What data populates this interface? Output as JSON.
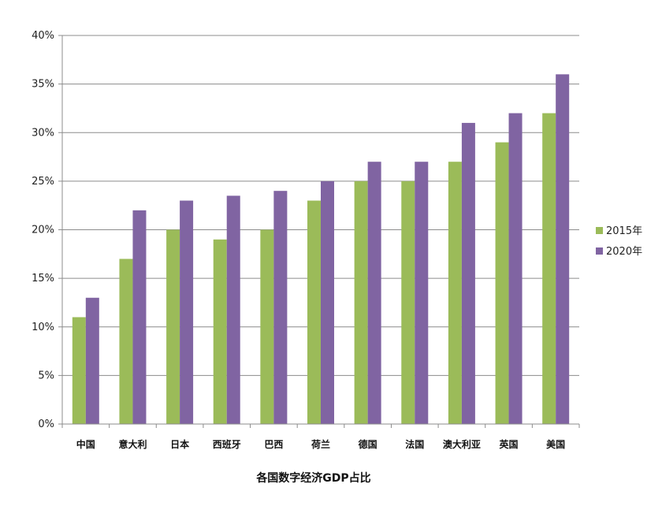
{
  "chart_data": {
    "type": "bar",
    "title": "各国数字经济GDP占比",
    "xlabel": "",
    "ylabel": "",
    "categories": [
      "中国",
      "意大利",
      "日本",
      "西班牙",
      "巴西",
      "荷兰",
      "德国",
      "法国",
      "澳大利亚",
      "英国",
      "美国"
    ],
    "series": [
      {
        "name": "2015年",
        "color": "#9bbb59",
        "values": [
          11,
          17,
          20,
          19,
          20,
          23,
          25,
          25,
          27,
          29,
          32
        ]
      },
      {
        "name": "2020年",
        "color": "#8064a2",
        "values": [
          13,
          22,
          23,
          23.5,
          24,
          25,
          27,
          27,
          31,
          32,
          36
        ]
      }
    ],
    "ylim": [
      0,
      40
    ],
    "y_ticks": [
      "0%",
      "5%",
      "10%",
      "15%",
      "20%",
      "25%",
      "30%",
      "35%",
      "40%"
    ],
    "grid": true,
    "legend_position": "right"
  }
}
